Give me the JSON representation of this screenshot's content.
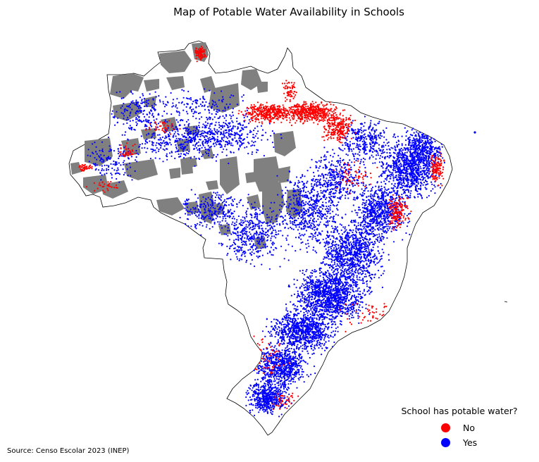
{
  "title": "Map of Potable Water Availability in Schools",
  "legend": {
    "title": "School has potable water?",
    "items": [
      {
        "label": "No",
        "color": "#ff0000"
      },
      {
        "label": "Yes",
        "color": "#0000ff"
      }
    ]
  },
  "source": "Source: Censo Escolar 2023 (INEP)",
  "colors": {
    "no": "#ff0000",
    "yes": "#0000ff",
    "protected_area": "#808080",
    "outline": "#000000",
    "background": "#ffffff"
  }
}
